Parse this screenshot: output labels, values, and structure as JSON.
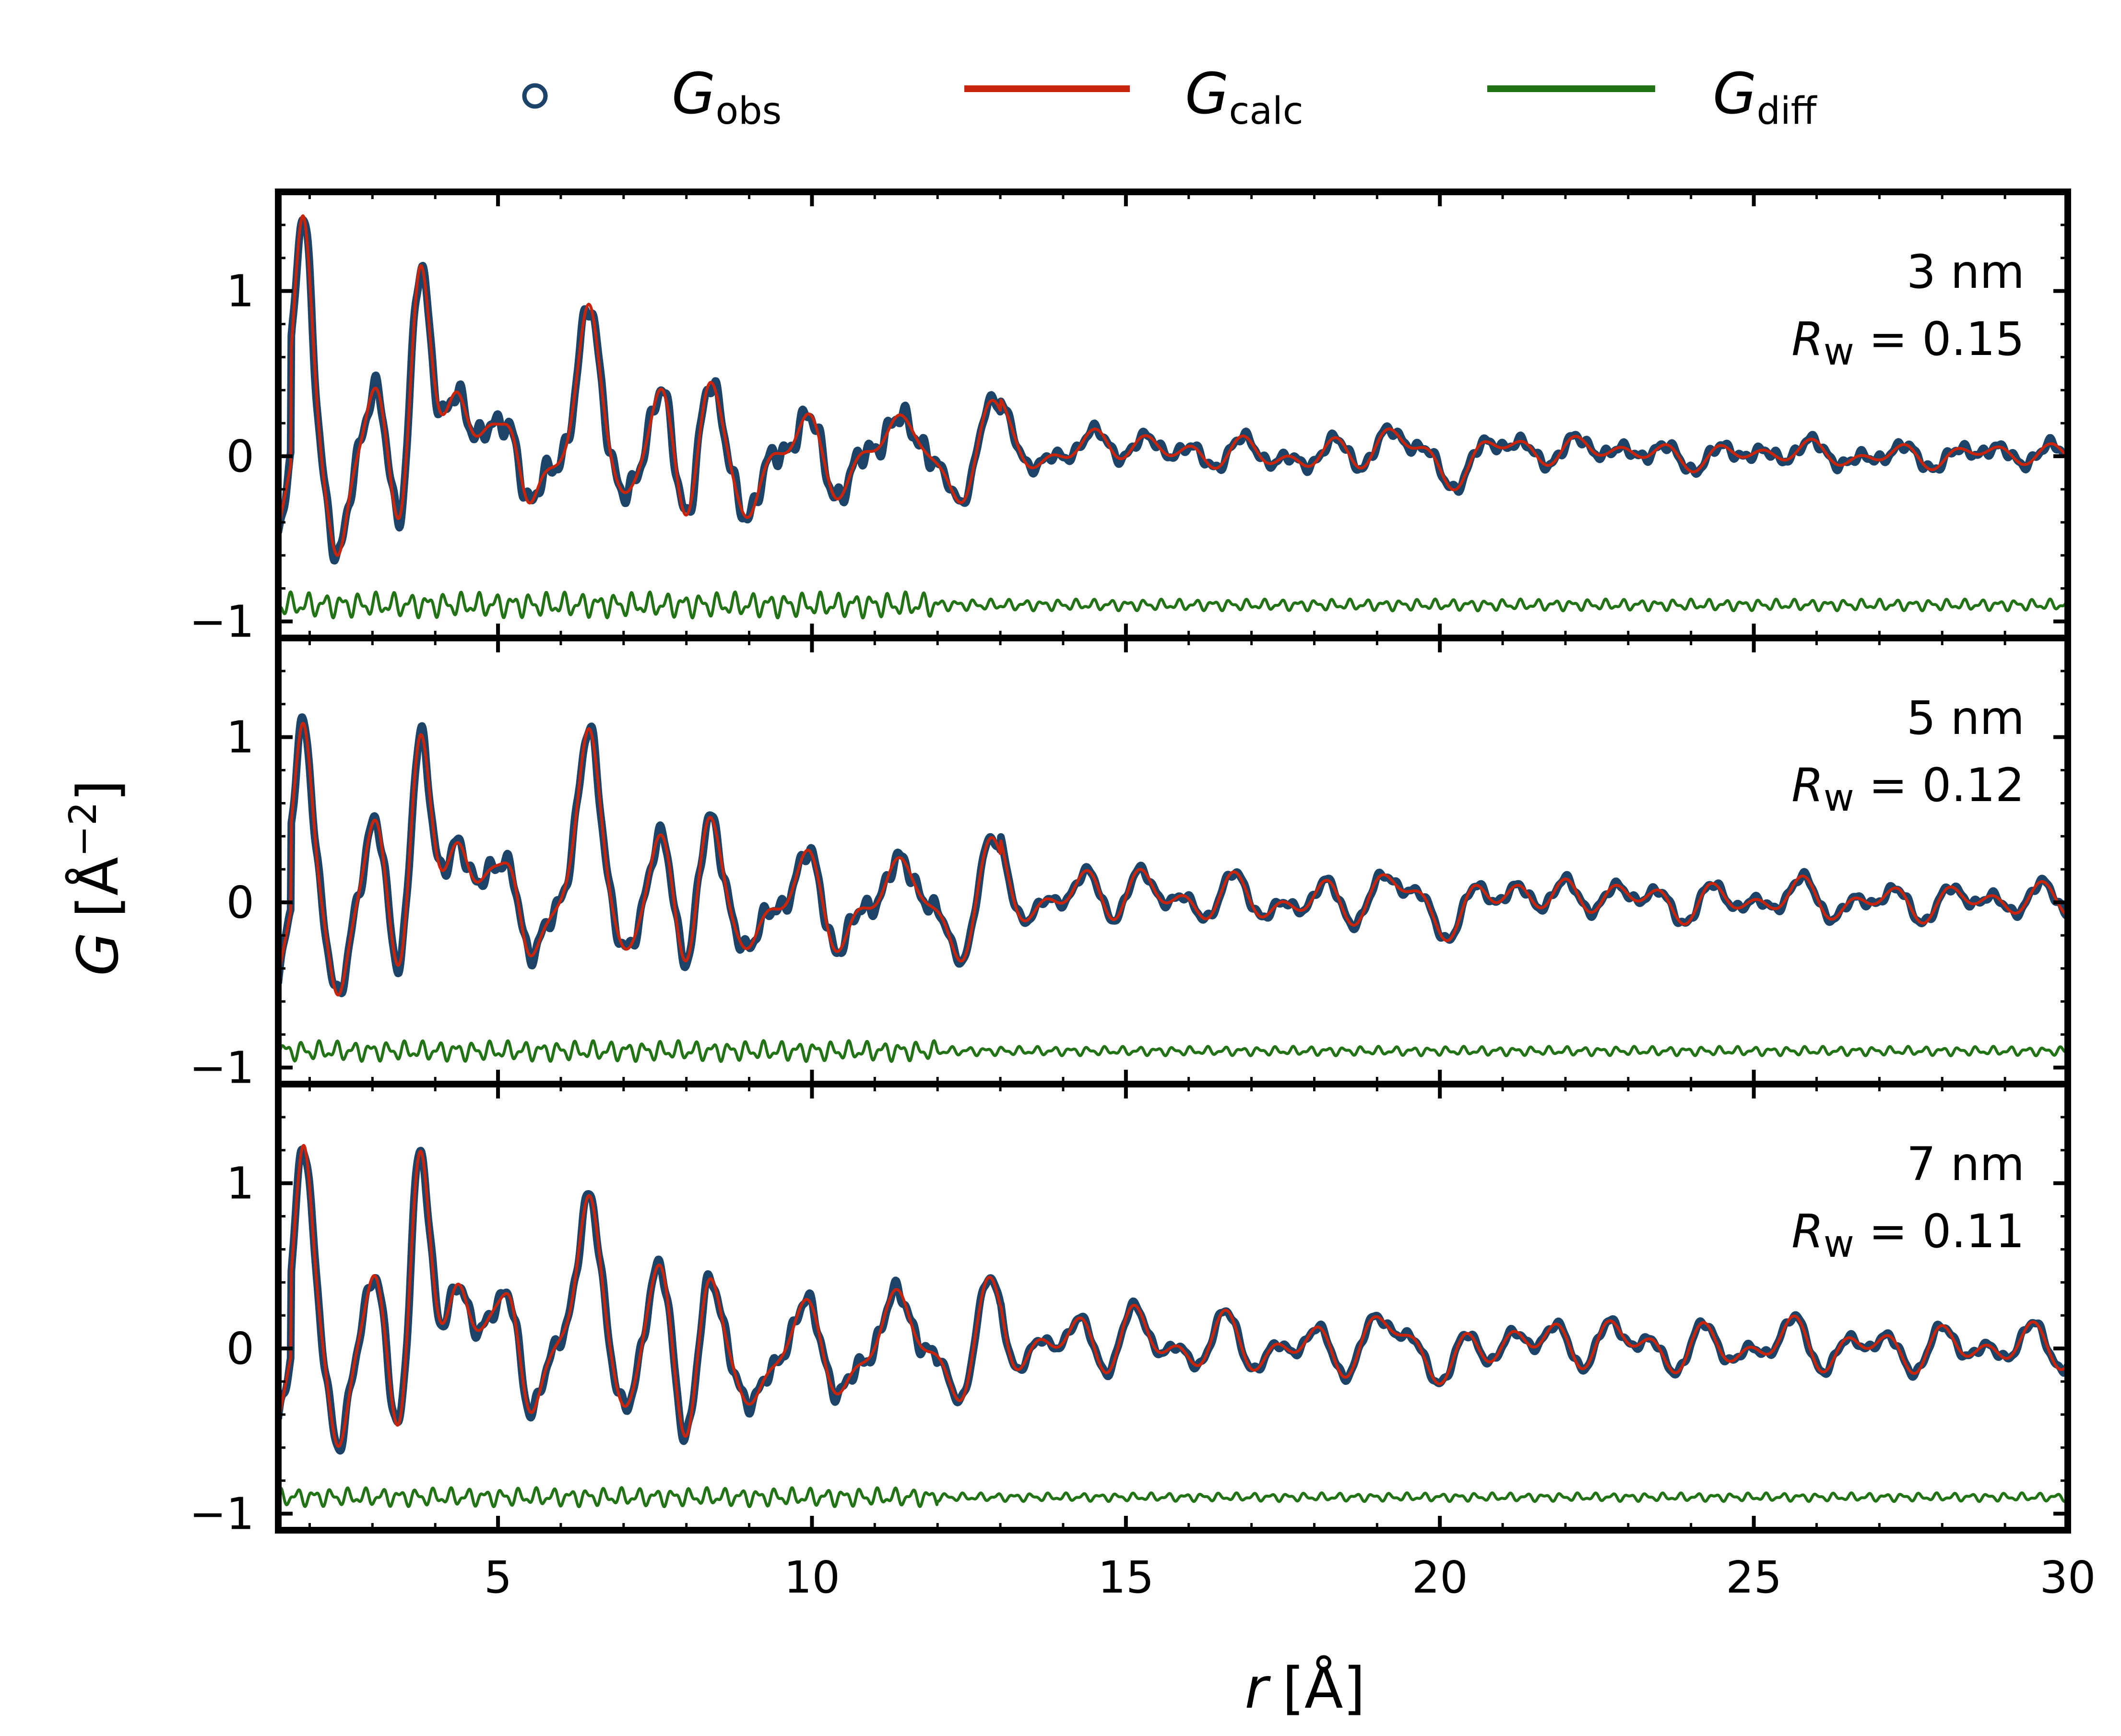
{
  "legend": {
    "obs": {
      "symbol": "G",
      "subscript": "obs",
      "color": "#1b4468"
    },
    "calc": {
      "symbol": "G",
      "subscript": "calc",
      "color": "#c9250c"
    },
    "diff": {
      "symbol": "G",
      "subscript": "diff",
      "color": "#227216"
    }
  },
  "chart_data": {
    "type": "line",
    "xlabel": {
      "symbol": "r",
      "unit": "[Å]"
    },
    "ylabel": {
      "symbol": "G",
      "unit": "[Å",
      "exponent": "−2",
      "close": "]"
    },
    "xlim": [
      1.5,
      30
    ],
    "ylim": [
      -1.1,
      1.6
    ],
    "xticks": [
      5,
      10,
      15,
      20,
      25,
      30
    ],
    "yticks": [
      -1,
      0,
      1
    ],
    "ytick_labels": [
      "−1",
      "0",
      "1"
    ],
    "diff_offset": -0.9,
    "peaks": [
      {
        "r": 1.9,
        "g": 1.3
      },
      {
        "r": 2.45,
        "g": -0.55
      },
      {
        "r": 3.05,
        "g": 0.45
      },
      {
        "r": 3.45,
        "g": -0.5
      },
      {
        "r": 3.75,
        "g": 1.1
      },
      {
        "r": 4.35,
        "g": 0.45
      },
      {
        "r": 4.9,
        "g": 0.2
      },
      {
        "r": 5.25,
        "g": 0.3
      },
      {
        "r": 5.45,
        "g": -0.45
      },
      {
        "r": 6.45,
        "g": 1.0
      },
      {
        "r": 7.0,
        "g": -0.3
      },
      {
        "r": 7.6,
        "g": 0.4
      },
      {
        "r": 8.0,
        "g": -0.5
      },
      {
        "r": 8.35,
        "g": 0.55
      },
      {
        "r": 9.0,
        "g": -0.35
      },
      {
        "r": 9.95,
        "g": 0.3
      },
      {
        "r": 10.4,
        "g": -0.3
      },
      {
        "r": 11.35,
        "g": 0.25
      },
      {
        "r": 12.4,
        "g": -0.35
      },
      {
        "r": 12.8,
        "g": 0.4
      },
      {
        "r": 14.3,
        "g": 0.08
      },
      {
        "r": 15.1,
        "g": 0.12
      },
      {
        "r": 16.5,
        "g": 0.05
      },
      {
        "r": 19.2,
        "g": 0.12
      },
      {
        "r": 20.2,
        "g": -0.1
      },
      {
        "r": 21.2,
        "g": 0.1
      },
      {
        "r": 22.6,
        "g": 0.08
      },
      {
        "r": 25.5,
        "g": 0.05
      },
      {
        "r": 29.0,
        "g": 0.03
      }
    ],
    "panels": [
      {
        "name": "3 nm",
        "label": "3 nm",
        "rw_symbol": "R",
        "rw_sub": "w",
        "rw_text": " = 0.15",
        "rw": 0.15,
        "amp_scale": 1.0,
        "damping": 0.035
      },
      {
        "name": "5 nm",
        "label": "5 nm",
        "rw_symbol": "R",
        "rw_sub": "w",
        "rw_text": " = 0.12",
        "rw": 0.12,
        "amp_scale": 1.0,
        "damping": 0.02
      },
      {
        "name": "7 nm",
        "label": "7 nm",
        "rw_symbol": "R",
        "rw_sub": "w",
        "rw_text": " = 0.11",
        "rw": 0.11,
        "amp_scale": 1.05,
        "damping": 0.012
      }
    ]
  }
}
